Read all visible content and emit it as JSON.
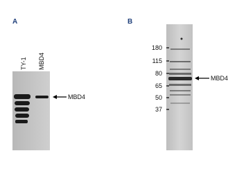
{
  "panels": [
    {
      "label": "A",
      "lanes": [
        "TY-1",
        "MBD4"
      ],
      "arrow_label": "MBD4"
    },
    {
      "label": "B",
      "markers": [
        "180",
        "115",
        "80",
        "65",
        "50",
        "37"
      ],
      "arrow_label": "MBD4"
    }
  ]
}
